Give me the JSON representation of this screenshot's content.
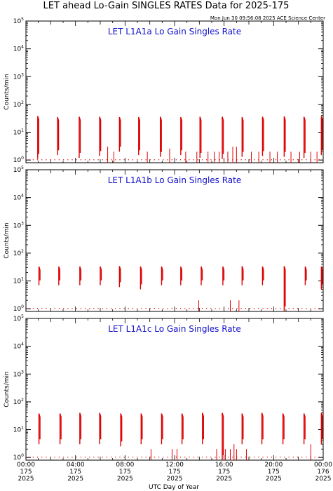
{
  "header": {
    "title": "LET ahead Lo-Gain SINGLES RATES Data for 2025-175",
    "timestamp": "Mon Jun 30 09:56:08 2025 ACE Science Center"
  },
  "colors": {
    "data": "#dd0000",
    "panel_title": "#1010cc",
    "axes": "#000000"
  },
  "shared_axes": {
    "ylabel": "Counts/min",
    "xlabel": "UTC Day of Year",
    "y_ticks": [
      {
        "value": 1,
        "base": "10",
        "exp": "0"
      },
      {
        "value": 10,
        "base": "10",
        "exp": "1"
      },
      {
        "value": 100,
        "base": "10",
        "exp": "2"
      },
      {
        "value": 1000,
        "base": "10",
        "exp": "3"
      },
      {
        "value": 10000,
        "base": "10",
        "exp": "4"
      },
      {
        "value": 100000,
        "base": "10",
        "exp": "5"
      }
    ],
    "x_ticks": [
      {
        "hour": 0,
        "time": "00:00",
        "doy": "175",
        "year": "2025"
      },
      {
        "hour": 4,
        "time": "04:00",
        "doy": "175",
        "year": "2025"
      },
      {
        "hour": 8,
        "time": "08:00",
        "doy": "175",
        "year": "2025"
      },
      {
        "hour": 12,
        "time": "12:00",
        "doy": "175",
        "year": "2025"
      },
      {
        "hour": 16,
        "time": "16:00",
        "doy": "175",
        "year": "2025"
      },
      {
        "hour": 20,
        "time": "20:00",
        "doy": "175",
        "year": "2025"
      },
      {
        "hour": 24,
        "time": "00:00",
        "doy": "176",
        "year": "2025"
      }
    ]
  },
  "chart_data": [
    {
      "type": "line",
      "title": "LET L1A1a Lo Gain Singles Rate",
      "xlabel": "UTC Day of Year",
      "ylabel": "Counts/min",
      "x_unit": "hours UTC, day 175 of 2025",
      "xlim": [
        0,
        24
      ],
      "ylim": [
        0.8,
        100000
      ],
      "y_scale": "log",
      "series": [
        {
          "bursts": [
            {
              "x": 0.95,
              "ymax": 38,
              "ymin": 1.1
            },
            {
              "x": 2.55,
              "ymax": 35,
              "ymin": 1.5
            },
            {
              "x": 4.3,
              "ymax": 36,
              "ymin": 1.2
            },
            {
              "x": 5.95,
              "ymax": 36,
              "ymin": 1.4
            },
            {
              "x": 7.55,
              "ymax": 35,
              "ymin": 2.0
            },
            {
              "x": 9.1,
              "ymax": 35,
              "ymin": 1.5
            },
            {
              "x": 10.85,
              "ymax": 36,
              "ymin": 1.3
            },
            {
              "x": 12.5,
              "ymax": 35,
              "ymin": 1.5
            },
            {
              "x": 14.05,
              "ymax": 36,
              "ymin": 1.2
            },
            {
              "x": 15.85,
              "ymax": 36,
              "ymin": 1.1
            },
            {
              "x": 17.45,
              "ymax": 35,
              "ymin": 1.3
            },
            {
              "x": 19.1,
              "ymax": 36,
              "ymin": 1.4
            },
            {
              "x": 20.85,
              "ymax": 37,
              "ymin": 1.3
            },
            {
              "x": 22.45,
              "ymax": 36,
              "ymin": 1.2
            },
            {
              "x": 23.85,
              "ymax": 38,
              "ymin": 1.5
            }
          ],
          "spikes": [
            {
              "x": 6.6,
              "y": 3
            },
            {
              "x": 7.1,
              "y": 2
            },
            {
              "x": 9.8,
              "y": 2
            },
            {
              "x": 11.6,
              "y": 2.6
            },
            {
              "x": 12.9,
              "y": 2
            },
            {
              "x": 13.8,
              "y": 2
            },
            {
              "x": 14.7,
              "y": 2
            },
            {
              "x": 15.2,
              "y": 2
            },
            {
              "x": 15.6,
              "y": 2
            },
            {
              "x": 16.3,
              "y": 2
            },
            {
              "x": 16.7,
              "y": 3
            },
            {
              "x": 17.0,
              "y": 3
            },
            {
              "x": 18.2,
              "y": 2
            },
            {
              "x": 18.8,
              "y": 2
            },
            {
              "x": 19.7,
              "y": 2
            },
            {
              "x": 20.3,
              "y": 2
            },
            {
              "x": 21.4,
              "y": 2
            },
            {
              "x": 22.1,
              "y": 2
            },
            {
              "x": 23.0,
              "y": 2
            },
            {
              "x": 23.5,
              "y": 2
            }
          ],
          "background": 1
        }
      ]
    },
    {
      "type": "line",
      "title": "LET L1A1b Lo Gain Singles Rate",
      "xlabel": "UTC Day of Year",
      "ylabel": "Counts/min",
      "x_unit": "hours UTC, day 175 of 2025",
      "xlim": [
        0,
        24
      ],
      "ylim": [
        0.8,
        100000
      ],
      "y_scale": "log",
      "series": [
        {
          "bursts": [
            {
              "x": 1.05,
              "ymax": 33,
              "ymin": 7
            },
            {
              "x": 2.65,
              "ymax": 33,
              "ymin": 7
            },
            {
              "x": 4.35,
              "ymax": 33,
              "ymin": 7
            },
            {
              "x": 6.0,
              "ymax": 33,
              "ymin": 7
            },
            {
              "x": 7.55,
              "ymax": 34,
              "ymin": 6
            },
            {
              "x": 9.25,
              "ymax": 33,
              "ymin": 5
            },
            {
              "x": 10.95,
              "ymax": 33,
              "ymin": 7
            },
            {
              "x": 12.5,
              "ymax": 33,
              "ymin": 7
            },
            {
              "x": 14.15,
              "ymax": 33,
              "ymin": 7
            },
            {
              "x": 15.9,
              "ymax": 33,
              "ymin": 7
            },
            {
              "x": 17.45,
              "ymax": 34,
              "ymin": 7
            },
            {
              "x": 19.1,
              "ymax": 33,
              "ymin": 7
            },
            {
              "x": 20.85,
              "ymax": 34,
              "ymin": 0.8
            },
            {
              "x": 22.55,
              "ymax": 33,
              "ymin": 7
            },
            {
              "x": 23.85,
              "ymax": 33,
              "ymin": 5
            }
          ],
          "spikes": [
            {
              "x": 13.95,
              "y": 2
            },
            {
              "x": 16.5,
              "y": 2
            },
            {
              "x": 17.2,
              "y": 2
            }
          ],
          "background": 1
        }
      ]
    },
    {
      "type": "line",
      "title": "LET L1A1c Lo Gain Singles Rate",
      "xlabel": "UTC Day of Year",
      "ylabel": "Counts/min",
      "x_unit": "hours UTC, day 175 of 2025",
      "xlim": [
        0,
        24
      ],
      "ylim": [
        0.8,
        100000
      ],
      "y_scale": "log",
      "series": [
        {
          "bursts": [
            {
              "x": 1.05,
              "ymax": 38,
              "ymin": 3
            },
            {
              "x": 2.75,
              "ymax": 38,
              "ymin": 3
            },
            {
              "x": 4.35,
              "ymax": 40,
              "ymin": 3
            },
            {
              "x": 5.95,
              "ymax": 40,
              "ymin": 3
            },
            {
              "x": 7.65,
              "ymax": 38,
              "ymin": 2.5
            },
            {
              "x": 9.3,
              "ymax": 38,
              "ymin": 3
            },
            {
              "x": 10.95,
              "ymax": 38,
              "ymin": 3
            },
            {
              "x": 12.6,
              "ymax": 38,
              "ymin": 3
            },
            {
              "x": 14.25,
              "ymax": 40,
              "ymin": 3
            },
            {
              "x": 15.85,
              "ymax": 40,
              "ymin": 0.8
            },
            {
              "x": 17.45,
              "ymax": 38,
              "ymin": 3
            },
            {
              "x": 19.05,
              "ymax": 40,
              "ymin": 3
            },
            {
              "x": 20.75,
              "ymax": 38,
              "ymin": 3
            },
            {
              "x": 22.45,
              "ymax": 38,
              "ymin": 3
            },
            {
              "x": 23.85,
              "ymax": 40,
              "ymin": 3
            }
          ],
          "spikes": [
            {
              "x": 10.1,
              "y": 2
            },
            {
              "x": 11.8,
              "y": 2
            },
            {
              "x": 12.2,
              "y": 2
            },
            {
              "x": 15.4,
              "y": 2
            },
            {
              "x": 16.1,
              "y": 2
            },
            {
              "x": 16.5,
              "y": 2
            },
            {
              "x": 16.8,
              "y": 3
            },
            {
              "x": 17.0,
              "y": 2
            },
            {
              "x": 17.8,
              "y": 2
            },
            {
              "x": 23.0,
              "y": 3
            }
          ],
          "background": 1
        }
      ]
    }
  ]
}
